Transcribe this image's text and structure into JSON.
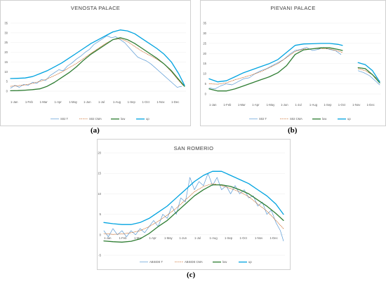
{
  "chart_data": [
    {
      "type": "line",
      "title": "VENOSTA PALACE",
      "caption": "(a)",
      "x_ticks": [
        "1-Jan",
        "1-Feb",
        "1-Mar",
        "1-Apr",
        "1-May",
        "1-Jun",
        "1-Jul",
        "1-Aug",
        "1-Sep",
        "1-Oct",
        "1-Nov",
        "1-Dec"
      ],
      "ylim": [
        0,
        35
      ],
      "y_ticks": [
        "0",
        "5",
        "10",
        "15",
        "20",
        "25",
        "30",
        "35"
      ],
      "series": [
        {
          "name": "S02 T",
          "color": "#5b9bd5",
          "width": 0.7,
          "dash": "",
          "x": [
            0,
            0.3,
            0.6,
            0.9,
            1.2,
            1.5,
            1.8,
            2.1,
            2.4,
            2.7,
            3.0,
            3.3,
            3.6,
            3.9,
            4.2,
            4.5,
            4.8,
            5.1,
            5.4,
            5.7,
            6.0,
            6.3,
            6.6,
            6.9,
            7.2,
            7.5,
            7.8,
            8.1,
            8.4,
            8.7,
            9.0,
            9.3,
            9.6,
            9.9,
            10.2,
            10.5,
            10.8,
            11.1,
            11.4,
            11.7
          ],
          "y": [
            1.5,
            3,
            2,
            3.5,
            3,
            4.5,
            4,
            6,
            5.5,
            8,
            9.5,
            11,
            10.5,
            13,
            14.5,
            16.5,
            18,
            20,
            21.5,
            24,
            25.5,
            27,
            28.5,
            27.5,
            28,
            26.5,
            25,
            22.5,
            20,
            17.5,
            16.5,
            15.5,
            14,
            12,
            10,
            8,
            6,
            4,
            2,
            2.5
          ]
        },
        {
          "name": "S02 CMA",
          "color": "#c55a11",
          "width": 0.6,
          "dash": "1.5,1",
          "x": [
            0,
            0.5,
            1,
            1.5,
            2,
            2.5,
            3,
            3.5,
            4,
            4.5,
            5,
            5.5,
            6,
            6.5,
            7,
            7.5,
            8,
            8.5,
            9,
            9.5,
            10,
            10.5,
            11,
            11.5,
            11.8
          ],
          "y": [
            2.5,
            2.8,
            3.2,
            4,
            5,
            6.3,
            8,
            9.8,
            12,
            14.2,
            16.8,
            19.5,
            22,
            24.5,
            26.5,
            27,
            25.5,
            23,
            20.5,
            18.5,
            16.5,
            14,
            10,
            5.5,
            3
          ]
        },
        {
          "name": "low",
          "color": "#2e7d32",
          "width": 1.3,
          "dash": "",
          "x": [
            0,
            0.5,
            1,
            1.5,
            2,
            2.5,
            3,
            3.5,
            4,
            4.5,
            5,
            5.5,
            6,
            6.5,
            7,
            7.5,
            8,
            8.5,
            9,
            9.5,
            10,
            10.5,
            11,
            11.5,
            11.9
          ],
          "y": [
            0.2,
            0.3,
            0.5,
            0.8,
            1.2,
            2.5,
            4.5,
            7,
            9.5,
            12.5,
            16,
            19,
            21.5,
            24,
            26.5,
            27.5,
            26.5,
            24.5,
            22,
            19.5,
            17,
            14,
            10.5,
            6,
            2.5
          ]
        },
        {
          "name": "up",
          "color": "#00a3e0",
          "width": 1.3,
          "dash": "",
          "x": [
            0,
            0.5,
            1,
            1.5,
            2,
            2.5,
            3,
            3.5,
            4,
            4.5,
            5,
            5.5,
            6,
            6.5,
            7,
            7.5,
            8,
            8.5,
            9,
            9.5,
            10,
            10.5,
            11,
            11.5,
            11.9
          ],
          "y": [
            6.5,
            6.6,
            6.8,
            7.5,
            9,
            10.5,
            12.5,
            14.5,
            17,
            19.5,
            22,
            24.5,
            26.5,
            28.5,
            30.5,
            31.5,
            31,
            29.5,
            27,
            24.5,
            22,
            19,
            15,
            9,
            3
          ]
        }
      ]
    },
    {
      "type": "line",
      "title": "PIEVANI PALACE",
      "caption": "(b)",
      "x_ticks": [
        "1-Jan",
        "1-Feb",
        "1-Mar",
        "1-Apr",
        "1-May",
        "1-Jun",
        "1-Jul",
        "1-Aug",
        "1-Sep",
        "1-Oct",
        "1-Nov",
        "1-Dec"
      ],
      "ylim": [
        0,
        35
      ],
      "y_ticks": [
        "0",
        "5",
        "10",
        "15",
        "20",
        "25",
        "30",
        "35"
      ],
      "series": [
        {
          "name": "S02 T",
          "color": "#5b9bd5",
          "width": 0.7,
          "dash": "",
          "x": [
            0,
            0.4,
            0.8,
            1.2,
            1.6,
            2.0,
            2.4,
            2.8,
            3.2,
            3.6,
            4.0,
            4.4,
            4.8,
            5.2,
            5.6,
            6.0,
            6.4,
            6.8,
            7.2,
            7.6,
            8.0,
            8.4,
            8.8,
            9.2,
            null,
            10.4,
            10.8,
            11.2,
            11.6,
            11.9
          ],
          "y": [
            3,
            2.5,
            4,
            5,
            4.5,
            6,
            7.5,
            8,
            10,
            11.5,
            12.5,
            14,
            15.5,
            17,
            19.5,
            21.5,
            22,
            23,
            21.5,
            22,
            23,
            22,
            21.5,
            19.5,
            null,
            11.5,
            10.5,
            9,
            6.5,
            4.5
          ]
        },
        {
          "name": "S02 CMA",
          "color": "#c55a11",
          "width": 0.6,
          "dash": "1.5,1",
          "x": [
            0,
            0.6,
            1.2,
            1.8,
            2.4,
            3.0,
            3.6,
            4.2,
            4.8,
            5.4,
            6.0,
            6.6,
            7.2,
            7.8,
            8.4,
            9.0,
            9.3,
            null,
            10.4,
            10.9,
            11.4,
            11.9
          ],
          "y": [
            5,
            4.8,
            5.5,
            7,
            8.2,
            9.5,
            11,
            13,
            15,
            18,
            21,
            22.2,
            22.3,
            22.5,
            22.2,
            21.2,
            20.5,
            null,
            12.5,
            11.5,
            9.5,
            6.5
          ]
        },
        {
          "name": "low",
          "color": "#2e7d32",
          "width": 1.3,
          "dash": "",
          "x": [
            0,
            0.6,
            1.2,
            1.8,
            2.4,
            3.0,
            3.6,
            4.2,
            4.8,
            5.4,
            6.0,
            6.6,
            7.2,
            7.8,
            8.4,
            9.0,
            9.3,
            null,
            10.4,
            10.9,
            11.4,
            11.9
          ],
          "y": [
            2.5,
            1.5,
            1.5,
            2.5,
            4,
            5.5,
            7,
            8.5,
            10.5,
            14,
            19.5,
            21.8,
            22.3,
            22.8,
            22.8,
            22,
            21.5,
            null,
            13,
            12.5,
            9.5,
            5.5
          ]
        },
        {
          "name": "up",
          "color": "#00a3e0",
          "width": 1.3,
          "dash": "",
          "x": [
            0,
            0.6,
            1.2,
            1.8,
            2.4,
            3.0,
            3.6,
            4.2,
            4.8,
            5.4,
            6.0,
            6.6,
            7.2,
            7.8,
            8.4,
            9.0,
            9.3,
            null,
            10.4,
            10.9,
            11.4,
            11.9
          ],
          "y": [
            7.5,
            6,
            6.5,
            8.5,
            10.5,
            12,
            13.5,
            15,
            17,
            20.5,
            24,
            24.7,
            24.8,
            25,
            25,
            24.5,
            24,
            null,
            15.5,
            14.5,
            11.5,
            6
          ]
        }
      ]
    },
    {
      "type": "line",
      "title": "SAN ROMERIO",
      "caption": "(c)",
      "x_ticks": [
        "1-Jan",
        "1-Feb",
        "1-Mar",
        "1-Apr",
        "1-May",
        "1-Jun",
        "1-Jul",
        "1-Aug",
        "1-Sep",
        "1-Oct",
        "1-Nov",
        "1-Dec"
      ],
      "ylim": [
        -5,
        20
      ],
      "y_ticks": [
        "-5",
        "0",
        "5",
        "10",
        "15",
        "20"
      ],
      "series": [
        {
          "name": "ABSIDE T",
          "color": "#5b9bd5",
          "width": 0.7,
          "dash": "",
          "x": [
            0,
            0.3,
            0.6,
            0.9,
            1.2,
            1.5,
            1.8,
            2.1,
            2.4,
            2.7,
            3.0,
            3.3,
            3.6,
            3.9,
            4.2,
            4.5,
            4.8,
            5.1,
            5.4,
            5.7,
            6.0,
            6.3,
            6.6,
            6.9,
            7.2,
            7.5,
            7.8,
            8.1,
            8.4,
            8.7,
            9.0,
            9.3,
            9.6,
            9.9,
            10.2,
            10.5,
            10.8,
            11.1,
            11.4,
            11.7,
            11.9
          ],
          "y": [
            1,
            -0.5,
            1.5,
            0,
            1,
            -0.5,
            1,
            0,
            1.5,
            0.5,
            2,
            3.5,
            2,
            5,
            4,
            7,
            5,
            9,
            8,
            14,
            11,
            13,
            12,
            15,
            12,
            14,
            11,
            12,
            10,
            12,
            10,
            11,
            9,
            9.5,
            7,
            8,
            5,
            6,
            3,
            1,
            -1.5
          ]
        },
        {
          "name": "ABSIDE CMA",
          "color": "#c55a11",
          "width": 0.6,
          "dash": "1.5,1",
          "x": [
            0,
            0.6,
            1.2,
            1.8,
            2.4,
            3.0,
            3.6,
            4.2,
            4.8,
            5.4,
            6.0,
            6.6,
            7.2,
            7.8,
            8.4,
            9.0,
            9.6,
            10.2,
            10.8,
            11.4,
            11.9
          ],
          "y": [
            0.3,
            0.1,
            0.2,
            0.5,
            1,
            2,
            3.3,
            4.8,
            6.5,
            8.5,
            10.5,
            11.8,
            12.5,
            12,
            11.3,
            10.5,
            9.3,
            7.5,
            5.8,
            3.5,
            1.5
          ]
        },
        {
          "name": "low",
          "color": "#2e7d32",
          "width": 1.3,
          "dash": "",
          "x": [
            0,
            0.6,
            1.2,
            1.8,
            2.4,
            3.0,
            3.6,
            4.2,
            4.8,
            5.4,
            6.0,
            6.6,
            7.2,
            7.8,
            8.4,
            9.0,
            9.6,
            10.2,
            10.8,
            11.4,
            11.9
          ],
          "y": [
            -1.5,
            -1.7,
            -1.8,
            -1.6,
            -1,
            0.3,
            2,
            3.5,
            5.5,
            7.5,
            9.5,
            11,
            12.2,
            12.2,
            11.8,
            11,
            10,
            8.5,
            7,
            5.2,
            3.5
          ]
        },
        {
          "name": "up",
          "color": "#00a3e0",
          "width": 1.3,
          "dash": "",
          "x": [
            0,
            0.6,
            1.2,
            1.8,
            2.4,
            3.0,
            3.6,
            4.2,
            4.8,
            5.4,
            6.0,
            6.6,
            7.2,
            7.8,
            8.4,
            9.0,
            9.6,
            10.2,
            10.8,
            11.4,
            11.9
          ],
          "y": [
            3,
            2.7,
            2.5,
            2.5,
            3,
            4,
            5.5,
            7,
            9,
            11,
            13,
            14.5,
            15.5,
            15.5,
            14.5,
            13.5,
            12.5,
            11,
            9.5,
            7.5,
            5
          ]
        }
      ]
    }
  ]
}
